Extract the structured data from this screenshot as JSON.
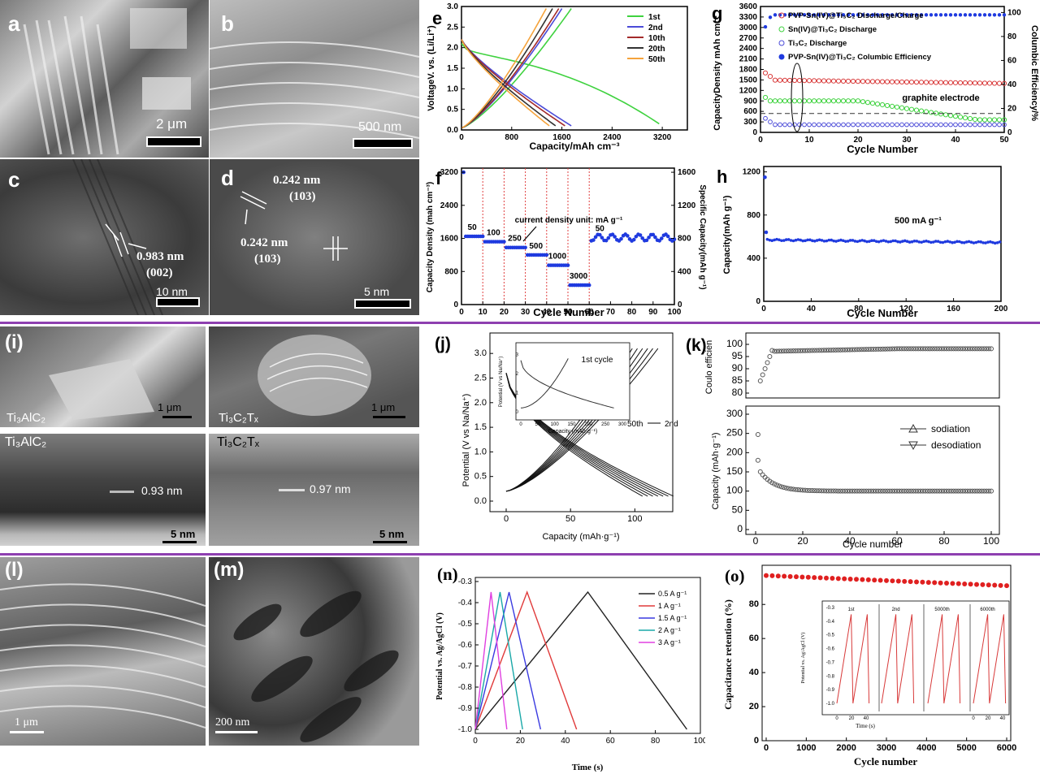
{
  "colors": {
    "divider": "#8e3fb0",
    "blue": "#1f3adf",
    "red": "#d93b3b",
    "green": "#3fd23f"
  },
  "micro": {
    "a": {
      "label": "a",
      "scale": "2 μm"
    },
    "b": {
      "label": "b",
      "scale": "500 nm"
    },
    "c": {
      "label": "c",
      "scale": "10 nm",
      "d_spacing": "0.983 nm",
      "plane": "(002)"
    },
    "d": {
      "label": "d",
      "scale": "5 nm",
      "d1": "0.242 nm",
      "p1": "(103)",
      "d2": "0.242 nm",
      "p2": "(103)"
    },
    "i": {
      "label": "(i)",
      "sem1_name": "Ti₃AlC₂",
      "sem1_scale": "1 μm",
      "sem2_name": "Ti₃C₂Tₓ",
      "sem2_scale": "1 μm",
      "tem1_name": "Ti₃AlC₂",
      "tem1_d": "0.93 nm",
      "tem1_scale": "5 nm",
      "tem2_name": "Ti₃C₂Tₓ",
      "tem2_d": "0.97 nm",
      "tem2_scale": "5 nm"
    },
    "l": {
      "label": "(l)",
      "scale": "1 μm"
    },
    "m": {
      "label": "(m)",
      "scale": "200 nm"
    }
  },
  "chart_data": [
    {
      "id": "e",
      "type": "line",
      "title": "e",
      "xlabel": "Capacity/mAh cm⁻³",
      "ylabel": "VoltageV. vs. (Li/Li⁺)",
      "xlim": [
        0,
        3600
      ],
      "ylim": [
        0,
        3.0
      ],
      "xticks": [
        "0",
        "800",
        "1600",
        "2400",
        "3200"
      ],
      "yticks": [
        "0.0",
        "0.5",
        "1.0",
        "1.5",
        "2.0",
        "2.5",
        "3.0"
      ],
      "series": [
        {
          "name": "1st",
          "color": "#3fd23f"
        },
        {
          "name": "2nd",
          "color": "#4b4bd8"
        },
        {
          "name": "10th",
          "color": "#a32a2a"
        },
        {
          "name": "20th",
          "color": "#333333"
        },
        {
          "name": "50th",
          "color": "#f5a33c"
        }
      ]
    },
    {
      "id": "g",
      "type": "line",
      "title": "g",
      "xlabel": "Cycle Number",
      "ylabel": "CapacityDensity mAh cm⁻³",
      "y2label": "Columbic Efficiency/%",
      "xticks": [
        "0",
        "10",
        "20",
        "30",
        "40",
        "50"
      ],
      "yticks": [
        "0",
        "300",
        "600",
        "900",
        "1200",
        "1500",
        "1800",
        "2100",
        "2400",
        "2700",
        "3000",
        "3300",
        "3600"
      ],
      "y2ticks": [
        "0",
        "20",
        "40",
        "60",
        "80",
        "100"
      ],
      "legend": [
        "PVP-Sn(IV)@Ti₃C₂ Discharge/Charge",
        "Sn(IV)@Ti₃C₂ Discharge",
        "Ti₃C₂ Discharge",
        "PVP-Sn(IV)@Ti₃C₂ Columbic Efficiency"
      ],
      "annotation": "graphite electrode"
    },
    {
      "id": "f",
      "type": "scatter",
      "title": "f",
      "xlabel": "Cycle Number",
      "ylabel": "Capacity Density (mah cm⁻³)",
      "y2label": "Specific Capacity(mAh g⁻¹)",
      "xticks": [
        "0",
        "10",
        "20",
        "30",
        "40",
        "50",
        "60",
        "70",
        "80",
        "90",
        "100"
      ],
      "yticks": [
        "0",
        "800",
        "1600",
        "2400",
        "3200"
      ],
      "y2ticks": [
        "0",
        "400",
        "800",
        "1200",
        "1600"
      ],
      "annotation": "current density unit: mA g⁻¹",
      "rates": [
        {
          "label": "50",
          "value": 1650
        },
        {
          "label": "100",
          "value": 1520
        },
        {
          "label": "250",
          "value": 1380
        },
        {
          "label": "500",
          "value": 1200
        },
        {
          "label": "1000",
          "value": 950
        },
        {
          "label": "3000",
          "value": 470
        },
        {
          "label": "50",
          "value": 1620
        }
      ]
    },
    {
      "id": "h",
      "type": "scatter",
      "title": "h",
      "xlabel": "Cycle Number",
      "ylabel": "Capacity(mAh g⁻¹)",
      "xticks": [
        "0",
        "40",
        "80",
        "120",
        "160",
        "200"
      ],
      "yticks": [
        "0",
        "400",
        "800",
        "1200"
      ],
      "annotation": "500 mA g⁻¹",
      "values": {
        "first": 1150,
        "stable": 570
      }
    },
    {
      "id": "j",
      "type": "line",
      "title": "(j)",
      "xlabel": "Capacity (mAh·g⁻¹)",
      "ylabel": "Potential (V vs Na/Na⁺)",
      "xticks": [
        "0",
        "50",
        "100"
      ],
      "yticks": [
        "0.0",
        "0.5",
        "1.0",
        "1.5",
        "2.0",
        "2.5",
        "3.0"
      ],
      "annotation1": "50th",
      "annotation2": "2nd",
      "inset": {
        "title": "1st cycle",
        "xlabel": "Capacity (mAh·g⁻¹)",
        "ylabel": "Potential (V vs Na/Na⁺)",
        "xticks": [
          "0",
          "50",
          "100",
          "150",
          "200",
          "250",
          "300"
        ],
        "yticks": [
          "0",
          "1",
          "2",
          "3"
        ]
      }
    },
    {
      "id": "k",
      "type": "scatter",
      "title": "(k)",
      "top": {
        "ylabel": "Coulo efficien",
        "yticks": [
          "80",
          "85",
          "90",
          "95",
          "100"
        ]
      },
      "bottom": {
        "ylabel": "Capacity (mAh·g⁻¹)",
        "yticks": [
          "0",
          "50",
          "100",
          "150",
          "200",
          "250",
          "300"
        ]
      },
      "xlabel": "Cycle number",
      "xticks": [
        "0",
        "20",
        "40",
        "60",
        "80",
        "100"
      ],
      "legend": [
        "sodiation",
        "desodiation"
      ]
    },
    {
      "id": "n",
      "type": "line",
      "title": "(n)",
      "xlabel": "Time (s)",
      "ylabel": "Potential vs. Ag/AgCl (V)",
      "xticks": [
        "0",
        "20",
        "40",
        "60",
        "80",
        "100"
      ],
      "yticks": [
        "-0.3",
        "-0.4",
        "-0.5",
        "-0.6",
        "-0.7",
        "-0.8",
        "-0.9",
        "-1.0"
      ],
      "series": [
        {
          "name": "0.5 A g⁻¹",
          "color": "#222222",
          "peak": 50,
          "end": 94
        },
        {
          "name": "1 A g⁻¹",
          "color": "#e03a3a",
          "peak": 23,
          "end": 45
        },
        {
          "name": "1.5 A g⁻¹",
          "color": "#3a3ae0",
          "peak": 15,
          "end": 29
        },
        {
          "name": "2 A g⁻¹",
          "color": "#1aa8a8",
          "peak": 11,
          "end": 21
        },
        {
          "name": "3 A g⁻¹",
          "color": "#e040e0",
          "peak": 7,
          "end": 14
        }
      ]
    },
    {
      "id": "o",
      "type": "scatter",
      "title": "(o)",
      "xlabel": "Cycle number",
      "ylabel": "Capacitance retention (%)",
      "xticks": [
        "0",
        "1000",
        "2000",
        "3000",
        "4000",
        "5000",
        "6000"
      ],
      "yticks": [
        "0",
        "20",
        "40",
        "60",
        "80"
      ],
      "values": {
        "start": 97,
        "end": 91
      },
      "inset": {
        "xlabel": "Time (s)",
        "ylabel": "Potential vs. Ag/AgCl (V)",
        "yticks": [
          "-0.3",
          "-0.4",
          "-0.5",
          "-0.6",
          "-0.7",
          "-0.8",
          "-0.9",
          "-1.0"
        ],
        "xticks": [
          "0",
          "20",
          "40"
        ],
        "cycles": [
          "1st",
          "2nd",
          "5000th",
          "6000th"
        ]
      }
    }
  ]
}
